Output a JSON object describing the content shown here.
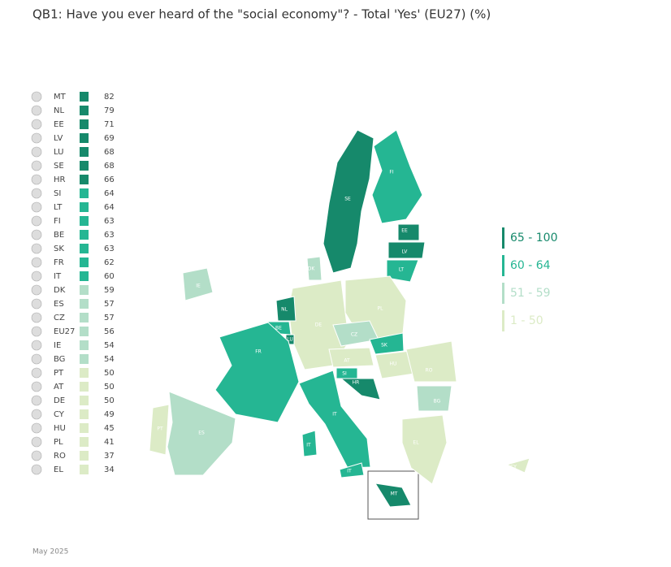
{
  "title": "QB1: Have you ever heard of the \"social economy\"? - Total 'Yes' (EU27) (%)",
  "rows": [
    {
      "code": "MT",
      "value": 82,
      "color": "#16896b"
    },
    {
      "code": "NL",
      "value": 79,
      "color": "#16896b"
    },
    {
      "code": "EE",
      "value": 71,
      "color": "#16896b"
    },
    {
      "code": "LV",
      "value": 69,
      "color": "#16896b"
    },
    {
      "code": "LU",
      "value": 68,
      "color": "#16896b"
    },
    {
      "code": "SE",
      "value": 68,
      "color": "#16896b"
    },
    {
      "code": "HR",
      "value": 66,
      "color": "#16896b"
    },
    {
      "code": "SI",
      "value": 64,
      "color": "#25b693"
    },
    {
      "code": "LT",
      "value": 64,
      "color": "#25b693"
    },
    {
      "code": "FI",
      "value": 63,
      "color": "#25b693"
    },
    {
      "code": "BE",
      "value": 63,
      "color": "#25b693"
    },
    {
      "code": "SK",
      "value": 63,
      "color": "#25b693"
    },
    {
      "code": "FR",
      "value": 62,
      "color": "#25b693"
    },
    {
      "code": "IT",
      "value": 60,
      "color": "#25b693"
    },
    {
      "code": "DK",
      "value": 59,
      "color": "#b3dec8"
    },
    {
      "code": "ES",
      "value": 57,
      "color": "#b3dec8"
    },
    {
      "code": "CZ",
      "value": 57,
      "color": "#b3dec8"
    },
    {
      "code": "EU27",
      "value": 56,
      "color": "#b3dec8"
    },
    {
      "code": "IE",
      "value": 54,
      "color": "#b3dec8"
    },
    {
      "code": "BG",
      "value": 54,
      "color": "#b3dec8"
    },
    {
      "code": "PT",
      "value": 50,
      "color": "#dcebc6"
    },
    {
      "code": "AT",
      "value": 50,
      "color": "#dcebc6"
    },
    {
      "code": "DE",
      "value": 50,
      "color": "#dcebc6"
    },
    {
      "code": "CY",
      "value": 49,
      "color": "#dcebc6"
    },
    {
      "code": "HU",
      "value": 45,
      "color": "#dcebc6"
    },
    {
      "code": "PL",
      "value": 41,
      "color": "#dcebc6"
    },
    {
      "code": "RO",
      "value": 37,
      "color": "#dcebc6"
    },
    {
      "code": "EL",
      "value": 34,
      "color": "#dcebc6"
    }
  ],
  "legend": [
    {
      "label": "65 - 100",
      "color": "#16896b"
    },
    {
      "label": "60 - 64",
      "color": "#25b693"
    },
    {
      "label": "51 - 59",
      "color": "#b3dec8"
    },
    {
      "label": "1 - 50",
      "color": "#dcebc6"
    }
  ],
  "footer": "May 2025"
}
